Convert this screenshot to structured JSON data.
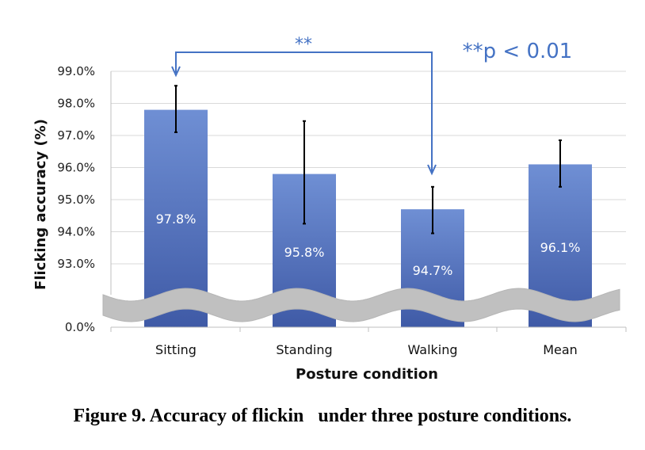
{
  "chart_data": {
    "type": "bar",
    "categories": [
      "Sitting",
      "Standing",
      "Walking",
      "Mean"
    ],
    "values": [
      97.8,
      95.8,
      94.7,
      96.1
    ],
    "value_labels": [
      "97.8%",
      "95.8%",
      "94.7%",
      "96.1%"
    ],
    "error_bars": [
      {
        "low": 97.1,
        "high": 98.55
      },
      {
        "low": 94.25,
        "high": 97.45
      },
      {
        "low": 93.95,
        "high": 95.4
      },
      {
        "low": 95.4,
        "high": 96.85
      }
    ],
    "xlabel": "Posture condition",
    "ylabel": "Flicking accuracy (%)",
    "ylim": [
      92.0,
      99.0
    ],
    "axis_break": true,
    "yticks": [
      {
        "value": 99.0,
        "label": "99.0%"
      },
      {
        "value": 98.0,
        "label": "98.0%"
      },
      {
        "value": 97.0,
        "label": "97.0%"
      },
      {
        "value": 96.0,
        "label": "96.0%"
      },
      {
        "value": 95.0,
        "label": "95.0%"
      },
      {
        "value": 94.0,
        "label": "94.0%"
      },
      {
        "value": 93.0,
        "label": "93.0%"
      }
    ],
    "baseline_tick": "0.0%",
    "grid": true,
    "significance": {
      "from": "Sitting",
      "to": "Walking",
      "marker": "**",
      "note": "**p < 0.01"
    },
    "colors": {
      "bar_top": "#6f8fd4",
      "bar_bottom": "#3f5aa6",
      "annotation": "#4472c4",
      "break": "#c0c0c0",
      "grid": "#d9d9d9"
    }
  },
  "caption": "Figure 9. Accuracy of flickin   under three posture conditions."
}
